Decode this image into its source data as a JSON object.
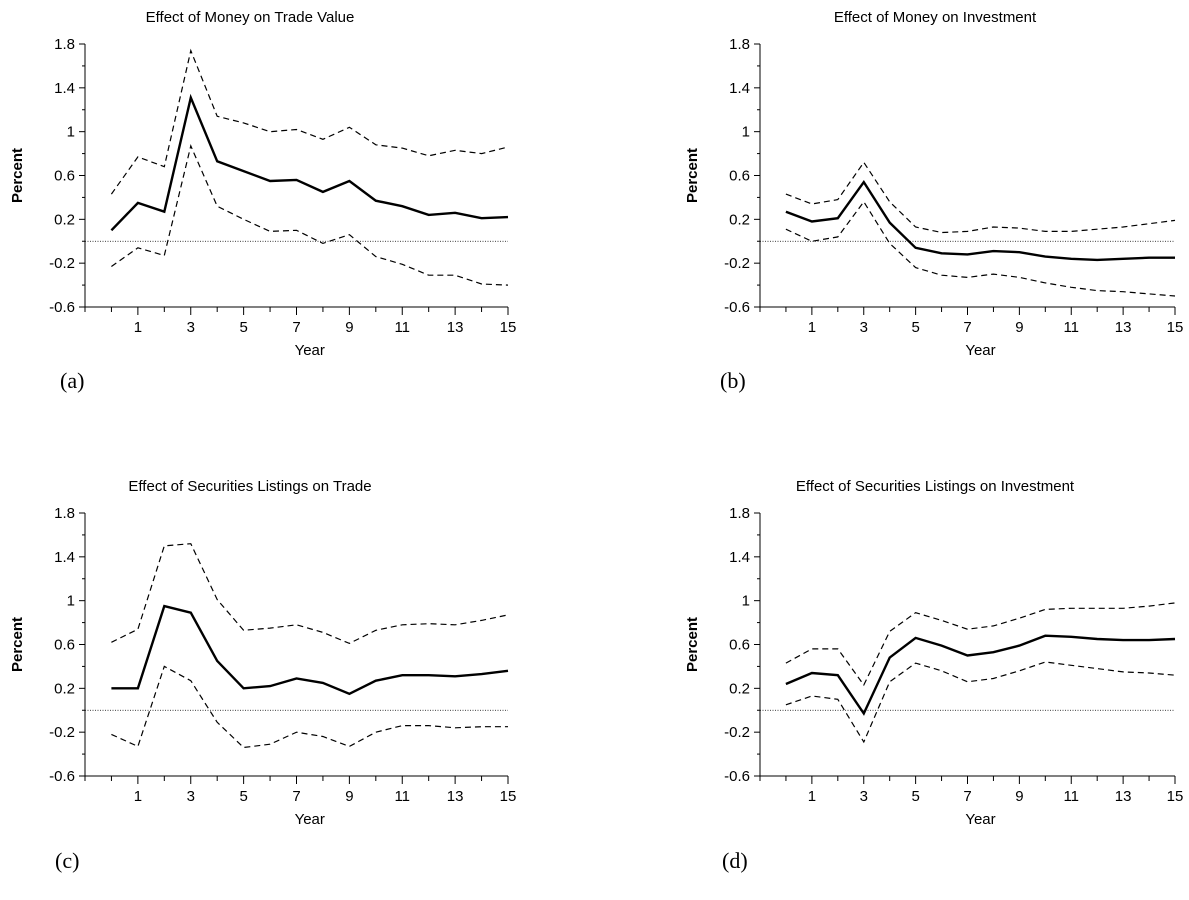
{
  "chart_data": [
    {
      "type": "line",
      "panel_label": "(a)",
      "title": "Effect of Money on Trade Value",
      "xlabel": "Year",
      "ylabel": "Percent",
      "xlim": [
        -1,
        15
      ],
      "ylim": [
        -0.6,
        1.8
      ],
      "yticks": [
        -0.6,
        -0.2,
        0.2,
        0.6,
        1,
        1.4,
        1.8
      ],
      "xtick_labels": [
        1,
        3,
        5,
        7,
        9,
        11,
        13,
        15
      ],
      "reference_line": 0,
      "x": [
        0,
        1,
        2,
        3,
        4,
        5,
        6,
        7,
        8,
        9,
        10,
        11,
        12,
        13,
        14,
        15
      ],
      "series": [
        {
          "role": "estimate",
          "values": [
            0.1,
            0.35,
            0.27,
            1.31,
            0.73,
            0.64,
            0.55,
            0.56,
            0.45,
            0.55,
            0.37,
            0.32,
            0.24,
            0.26,
            0.21,
            0.22
          ]
        },
        {
          "role": "upper",
          "values": [
            0.43,
            0.77,
            0.68,
            1.74,
            1.14,
            1.08,
            1.0,
            1.02,
            0.93,
            1.04,
            0.88,
            0.85,
            0.78,
            0.83,
            0.8,
            0.86
          ]
        },
        {
          "role": "lower",
          "values": [
            -0.23,
            -0.06,
            -0.13,
            0.87,
            0.32,
            0.2,
            0.09,
            0.1,
            -0.02,
            0.06,
            -0.14,
            -0.21,
            -0.31,
            -0.31,
            -0.39,
            -0.4
          ]
        }
      ]
    },
    {
      "type": "line",
      "panel_label": "(b)",
      "title": "Effect of Money on Investment",
      "xlabel": "Year",
      "ylabel": "Percent",
      "xlim": [
        -1,
        15
      ],
      "ylim": [
        -0.6,
        1.8
      ],
      "yticks": [
        -0.6,
        -0.2,
        0.2,
        0.6,
        1,
        1.4,
        1.8
      ],
      "xtick_labels": [
        1,
        3,
        5,
        7,
        9,
        11,
        13,
        15
      ],
      "reference_line": 0,
      "x": [
        0,
        1,
        2,
        3,
        4,
        5,
        6,
        7,
        8,
        9,
        10,
        11,
        12,
        13,
        14,
        15
      ],
      "series": [
        {
          "role": "estimate",
          "values": [
            0.27,
            0.18,
            0.21,
            0.54,
            0.17,
            -0.06,
            -0.11,
            -0.12,
            -0.09,
            -0.1,
            -0.14,
            -0.16,
            -0.17,
            -0.16,
            -0.15,
            -0.15
          ]
        },
        {
          "role": "upper",
          "values": [
            0.43,
            0.34,
            0.38,
            0.72,
            0.36,
            0.13,
            0.08,
            0.09,
            0.13,
            0.12,
            0.09,
            0.09,
            0.11,
            0.13,
            0.16,
            0.19
          ]
        },
        {
          "role": "lower",
          "values": [
            0.11,
            0.0,
            0.04,
            0.36,
            -0.02,
            -0.24,
            -0.31,
            -0.33,
            -0.3,
            -0.33,
            -0.38,
            -0.42,
            -0.45,
            -0.46,
            -0.48,
            -0.5
          ]
        }
      ]
    },
    {
      "type": "line",
      "panel_label": "(c)",
      "title": "Effect of Securities Listings on Trade",
      "xlabel": "Year",
      "ylabel": "Percent",
      "xlim": [
        -1,
        15
      ],
      "ylim": [
        -0.6,
        1.8
      ],
      "yticks": [
        -0.6,
        -0.2,
        0.2,
        0.6,
        1,
        1.4,
        1.8
      ],
      "xtick_labels": [
        1,
        3,
        5,
        7,
        9,
        11,
        13,
        15
      ],
      "reference_line": 0,
      "x": [
        0,
        1,
        2,
        3,
        4,
        5,
        6,
        7,
        8,
        9,
        10,
        11,
        12,
        13,
        14,
        15
      ],
      "series": [
        {
          "role": "estimate",
          "values": [
            0.2,
            0.2,
            0.95,
            0.89,
            0.45,
            0.2,
            0.22,
            0.29,
            0.25,
            0.15,
            0.27,
            0.32,
            0.32,
            0.31,
            0.33,
            0.36
          ]
        },
        {
          "role": "upper",
          "values": [
            0.62,
            0.74,
            1.5,
            1.52,
            1.01,
            0.73,
            0.75,
            0.78,
            0.71,
            0.61,
            0.73,
            0.78,
            0.79,
            0.78,
            0.82,
            0.87
          ]
        },
        {
          "role": "lower",
          "values": [
            -0.22,
            -0.33,
            0.4,
            0.27,
            -0.11,
            -0.34,
            -0.31,
            -0.2,
            -0.24,
            -0.33,
            -0.2,
            -0.14,
            -0.14,
            -0.16,
            -0.15,
            -0.15
          ]
        }
      ]
    },
    {
      "type": "line",
      "panel_label": "(d)",
      "title": "Effect of Securities Listings on Investment",
      "xlabel": "Year",
      "ylabel": "Percent",
      "xlim": [
        -1,
        15
      ],
      "ylim": [
        -0.6,
        1.8
      ],
      "yticks": [
        -0.6,
        -0.2,
        0.2,
        0.6,
        1,
        1.4,
        1.8
      ],
      "xtick_labels": [
        1,
        3,
        5,
        7,
        9,
        11,
        13,
        15
      ],
      "reference_line": 0,
      "x": [
        0,
        1,
        2,
        3,
        4,
        5,
        6,
        7,
        8,
        9,
        10,
        11,
        12,
        13,
        14,
        15
      ],
      "series": [
        {
          "role": "estimate",
          "values": [
            0.24,
            0.34,
            0.32,
            -0.03,
            0.48,
            0.66,
            0.59,
            0.5,
            0.53,
            0.59,
            0.68,
            0.67,
            0.65,
            0.64,
            0.64,
            0.65
          ]
        },
        {
          "role": "upper",
          "values": [
            0.43,
            0.56,
            0.56,
            0.23,
            0.72,
            0.89,
            0.82,
            0.74,
            0.77,
            0.84,
            0.92,
            0.93,
            0.93,
            0.93,
            0.95,
            0.98
          ]
        },
        {
          "role": "lower",
          "values": [
            0.05,
            0.13,
            0.1,
            -0.29,
            0.26,
            0.43,
            0.36,
            0.26,
            0.29,
            0.36,
            0.44,
            0.41,
            0.38,
            0.35,
            0.34,
            0.32
          ]
        }
      ]
    }
  ]
}
